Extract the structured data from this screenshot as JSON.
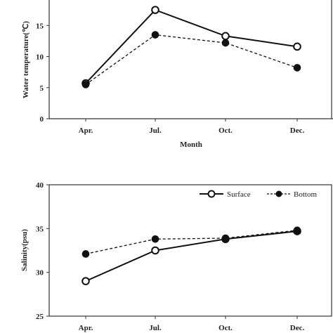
{
  "chart_data": [
    {
      "type": "line",
      "title": "",
      "xlabel": "Month",
      "ylabel": "Water temperature(℃)",
      "categories": [
        "Apr.",
        "Jul.",
        "Oct.",
        "Dec."
      ],
      "ylim": [
        0,
        20
      ],
      "yticks": [
        "0",
        "5",
        "10",
        "15"
      ],
      "grid": false,
      "series": [
        {
          "values": [
            5.7,
            17.5,
            13.3,
            11.6
          ],
          "style": "solid",
          "marker": "open-circle"
        },
        {
          "values": [
            5.5,
            13.5,
            12.2,
            8.2
          ],
          "style": "dashed",
          "marker": "filled-circle"
        }
      ]
    },
    {
      "type": "line",
      "title": "",
      "xlabel": "",
      "ylabel": "Salinity(psu)",
      "categories": [
        "Apr.",
        "Jul.",
        "Oct.",
        "Dec."
      ],
      "ylim": [
        25,
        40
      ],
      "yticks": [
        "25",
        "30",
        "35",
        "40"
      ],
      "grid": false,
      "legend": "top-right",
      "series": [
        {
          "name": "Surface",
          "values": [
            29.0,
            32.5,
            33.8,
            34.7
          ],
          "style": "solid",
          "marker": "open-circle"
        },
        {
          "name": "Bottom",
          "values": [
            32.1,
            33.8,
            33.9,
            34.8
          ],
          "style": "dashed",
          "marker": "filled-circle"
        }
      ]
    }
  ]
}
